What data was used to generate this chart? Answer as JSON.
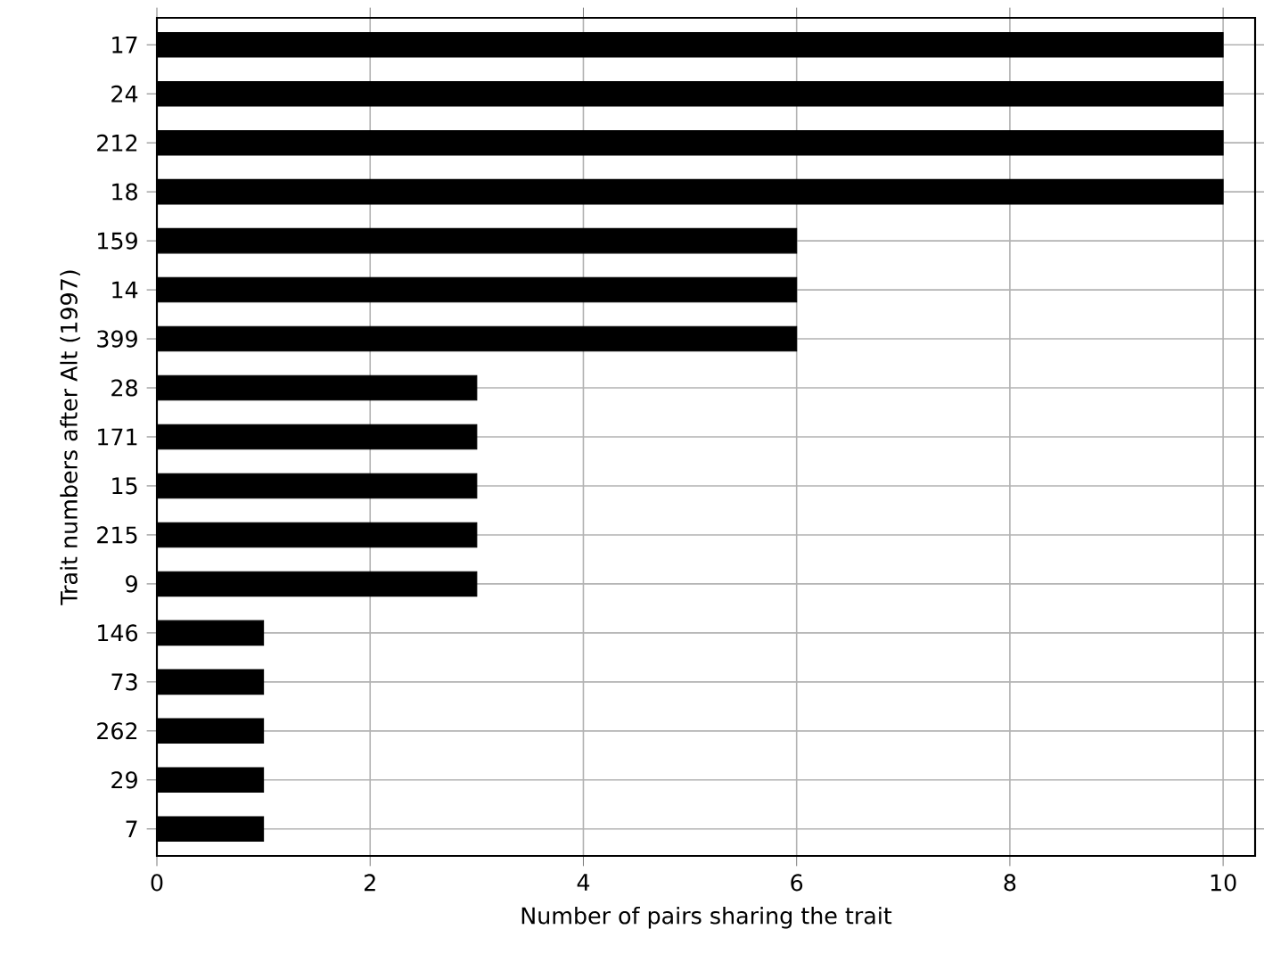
{
  "chart_data": {
    "type": "bar",
    "orientation": "horizontal",
    "xlabel": "Number of pairs sharing the trait",
    "ylabel": "Trait numbers after Alt (1997)",
    "categories": [
      "17",
      "24",
      "212",
      "18",
      "159",
      "14",
      "399",
      "28",
      "171",
      "15",
      "215",
      "9",
      "146",
      "73",
      "262",
      "29",
      "7"
    ],
    "values": [
      10,
      10,
      10,
      10,
      6,
      6,
      6,
      3,
      3,
      3,
      3,
      3,
      1,
      1,
      1,
      1,
      1
    ],
    "color": "#000000",
    "xlim": [
      0,
      10.3
    ],
    "xticks": [
      0,
      2,
      4,
      6,
      8,
      10
    ],
    "grid": true
  }
}
